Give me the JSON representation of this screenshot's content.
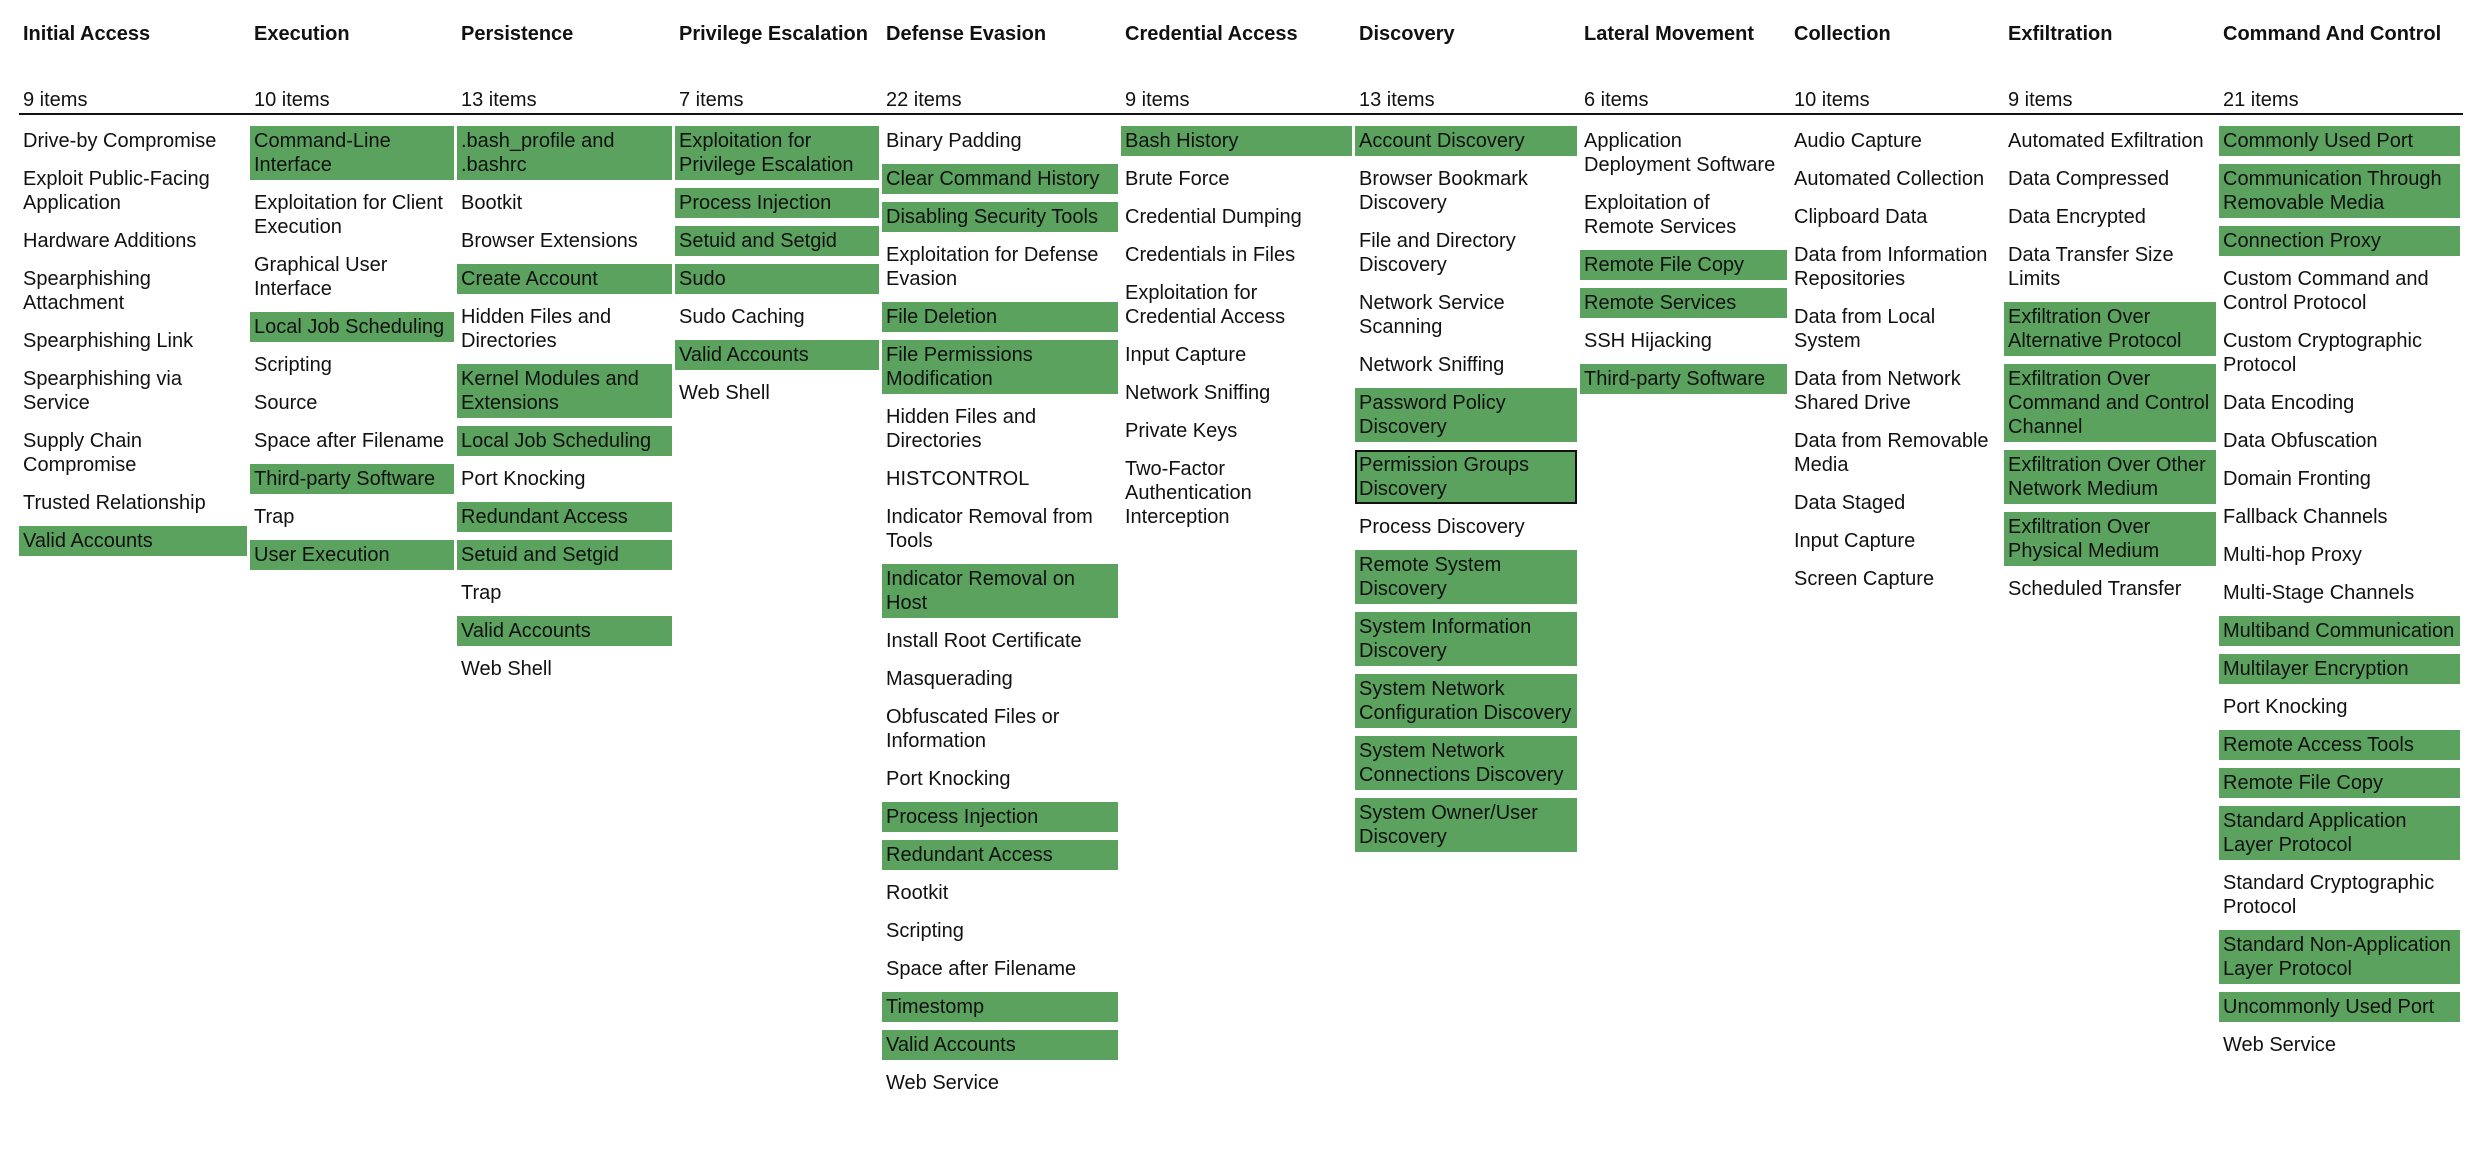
{
  "highlight_color": "#5ba25e",
  "selected_border": "#111111",
  "columns": [
    {
      "title": "Initial Access",
      "count": "9 items",
      "items": [
        {
          "name": "Drive-by Compromise",
          "highlighted": false
        },
        {
          "name": "Exploit Public-Facing Application",
          "highlighted": false
        },
        {
          "name": "Hardware Additions",
          "highlighted": false
        },
        {
          "name": "Spearphishing Attachment",
          "highlighted": false
        },
        {
          "name": "Spearphishing Link",
          "highlighted": false
        },
        {
          "name": "Spearphishing via Service",
          "highlighted": false
        },
        {
          "name": "Supply Chain Compromise",
          "highlighted": false
        },
        {
          "name": "Trusted Relationship",
          "highlighted": false
        },
        {
          "name": "Valid Accounts",
          "highlighted": true
        }
      ]
    },
    {
      "title": "Execution",
      "count": "10 items",
      "items": [
        {
          "name": "Command-Line Interface",
          "highlighted": true
        },
        {
          "name": "Exploitation for Client Execution",
          "highlighted": false
        },
        {
          "name": "Graphical User Interface",
          "highlighted": false
        },
        {
          "name": "Local Job Scheduling",
          "highlighted": true
        },
        {
          "name": "Scripting",
          "highlighted": false
        },
        {
          "name": "Source",
          "highlighted": false
        },
        {
          "name": "Space after Filename",
          "highlighted": false
        },
        {
          "name": "Third-party Software",
          "highlighted": true
        },
        {
          "name": "Trap",
          "highlighted": false
        },
        {
          "name": "User Execution",
          "highlighted": true
        }
      ]
    },
    {
      "title": "Persistence",
      "count": "13 items",
      "items": [
        {
          "name": ".bash_profile and .bashrc",
          "highlighted": true
        },
        {
          "name": "Bootkit",
          "highlighted": false
        },
        {
          "name": "Browser Extensions",
          "highlighted": false
        },
        {
          "name": "Create Account",
          "highlighted": true
        },
        {
          "name": "Hidden Files and Directories",
          "highlighted": false
        },
        {
          "name": "Kernel Modules and Extensions",
          "highlighted": true
        },
        {
          "name": "Local Job Scheduling",
          "highlighted": true
        },
        {
          "name": "Port Knocking",
          "highlighted": false
        },
        {
          "name": "Redundant Access",
          "highlighted": true
        },
        {
          "name": "Setuid and Setgid",
          "highlighted": true
        },
        {
          "name": "Trap",
          "highlighted": false
        },
        {
          "name": "Valid Accounts",
          "highlighted": true
        },
        {
          "name": "Web Shell",
          "highlighted": false
        }
      ]
    },
    {
      "title": "Privilege Escalation",
      "count": "7 items",
      "items": [
        {
          "name": "Exploitation for Privilege Escalation",
          "highlighted": true
        },
        {
          "name": "Process Injection",
          "highlighted": true
        },
        {
          "name": "Setuid and Setgid",
          "highlighted": true
        },
        {
          "name": "Sudo",
          "highlighted": true
        },
        {
          "name": "Sudo Caching",
          "highlighted": false
        },
        {
          "name": "Valid Accounts",
          "highlighted": true
        },
        {
          "name": "Web Shell",
          "highlighted": false
        }
      ]
    },
    {
      "title": "Defense Evasion",
      "count": "22 items",
      "items": [
        {
          "name": "Binary Padding",
          "highlighted": false
        },
        {
          "name": "Clear Command History",
          "highlighted": true
        },
        {
          "name": "Disabling Security Tools",
          "highlighted": true
        },
        {
          "name": "Exploitation for Defense Evasion",
          "highlighted": false
        },
        {
          "name": "File Deletion",
          "highlighted": true
        },
        {
          "name": "File Permissions Modification",
          "highlighted": true
        },
        {
          "name": "Hidden Files and Directories",
          "highlighted": false
        },
        {
          "name": "HISTCONTROL",
          "highlighted": false
        },
        {
          "name": "Indicator Removal from Tools",
          "highlighted": false
        },
        {
          "name": "Indicator Removal on Host",
          "highlighted": true
        },
        {
          "name": "Install Root Certificate",
          "highlighted": false
        },
        {
          "name": "Masquerading",
          "highlighted": false
        },
        {
          "name": "Obfuscated Files or Information",
          "highlighted": false
        },
        {
          "name": "Port Knocking",
          "highlighted": false
        },
        {
          "name": "Process Injection",
          "highlighted": true
        },
        {
          "name": "Redundant Access",
          "highlighted": true
        },
        {
          "name": "Rootkit",
          "highlighted": false
        },
        {
          "name": "Scripting",
          "highlighted": false
        },
        {
          "name": "Space after Filename",
          "highlighted": false
        },
        {
          "name": "Timestomp",
          "highlighted": true
        },
        {
          "name": "Valid Accounts",
          "highlighted": true
        },
        {
          "name": "Web Service",
          "highlighted": false
        }
      ]
    },
    {
      "title": "Credential Access",
      "count": "9 items",
      "items": [
        {
          "name": "Bash History",
          "highlighted": true
        },
        {
          "name": "Brute Force",
          "highlighted": false
        },
        {
          "name": "Credential Dumping",
          "highlighted": false
        },
        {
          "name": "Credentials in Files",
          "highlighted": false
        },
        {
          "name": "Exploitation for Credential Access",
          "highlighted": false
        },
        {
          "name": "Input Capture",
          "highlighted": false
        },
        {
          "name": "Network Sniffing",
          "highlighted": false
        },
        {
          "name": "Private Keys",
          "highlighted": false
        },
        {
          "name": "Two-Factor Authentication Interception",
          "highlighted": false
        }
      ]
    },
    {
      "title": "Discovery",
      "count": "13 items",
      "items": [
        {
          "name": "Account Discovery",
          "highlighted": true
        },
        {
          "name": "Browser Bookmark Discovery",
          "highlighted": false
        },
        {
          "name": "File and Directory Discovery",
          "highlighted": false
        },
        {
          "name": "Network Service Scanning",
          "highlighted": false
        },
        {
          "name": "Network Sniffing",
          "highlighted": false
        },
        {
          "name": "Password Policy Discovery",
          "highlighted": true
        },
        {
          "name": "Permission Groups Discovery",
          "highlighted": true,
          "selected": true
        },
        {
          "name": "Process Discovery",
          "highlighted": false
        },
        {
          "name": "Remote System Discovery",
          "highlighted": true
        },
        {
          "name": "System Information Discovery",
          "highlighted": true
        },
        {
          "name": "System Network Configuration Discovery",
          "highlighted": true
        },
        {
          "name": "System Network Connections Discovery",
          "highlighted": true
        },
        {
          "name": "System Owner/User Discovery",
          "highlighted": true
        }
      ]
    },
    {
      "title": "Lateral Movement",
      "count": "6 items",
      "items": [
        {
          "name": "Application Deployment Software",
          "highlighted": false
        },
        {
          "name": "Exploitation of Remote Services",
          "highlighted": false
        },
        {
          "name": "Remote File Copy",
          "highlighted": true
        },
        {
          "name": "Remote Services",
          "highlighted": true
        },
        {
          "name": "SSH Hijacking",
          "highlighted": false
        },
        {
          "name": "Third-party Software",
          "highlighted": true
        }
      ]
    },
    {
      "title": "Collection",
      "count": "10 items",
      "items": [
        {
          "name": "Audio Capture",
          "highlighted": false
        },
        {
          "name": "Automated Collection",
          "highlighted": false
        },
        {
          "name": "Clipboard Data",
          "highlighted": false
        },
        {
          "name": "Data from Information Repositories",
          "highlighted": false
        },
        {
          "name": "Data from Local System",
          "highlighted": false
        },
        {
          "name": "Data from Network Shared Drive",
          "highlighted": false
        },
        {
          "name": "Data from Removable Media",
          "highlighted": false
        },
        {
          "name": "Data Staged",
          "highlighted": false
        },
        {
          "name": "Input Capture",
          "highlighted": false
        },
        {
          "name": "Screen Capture",
          "highlighted": false
        }
      ]
    },
    {
      "title": "Exfiltration",
      "count": "9 items",
      "items": [
        {
          "name": "Automated Exfiltration",
          "highlighted": false
        },
        {
          "name": "Data Compressed",
          "highlighted": false
        },
        {
          "name": "Data Encrypted",
          "highlighted": false
        },
        {
          "name": "Data Transfer Size Limits",
          "highlighted": false
        },
        {
          "name": "Exfiltration Over Alternative Protocol",
          "highlighted": true
        },
        {
          "name": "Exfiltration Over Command and Control Channel",
          "highlighted": true
        },
        {
          "name": "Exfiltration Over Other Network Medium",
          "highlighted": true
        },
        {
          "name": "Exfiltration Over Physical Medium",
          "highlighted": true
        },
        {
          "name": "Scheduled Transfer",
          "highlighted": false
        }
      ]
    },
    {
      "title": "Command And Control",
      "count": "21 items",
      "items": [
        {
          "name": "Commonly Used Port",
          "highlighted": true
        },
        {
          "name": "Communication Through Removable Media",
          "highlighted": true
        },
        {
          "name": "Connection Proxy",
          "highlighted": true
        },
        {
          "name": "Custom Command and Control Protocol",
          "highlighted": false
        },
        {
          "name": "Custom Cryptographic Protocol",
          "highlighted": false
        },
        {
          "name": "Data Encoding",
          "highlighted": false
        },
        {
          "name": "Data Obfuscation",
          "highlighted": false
        },
        {
          "name": "Domain Fronting",
          "highlighted": false
        },
        {
          "name": "Fallback Channels",
          "highlighted": false
        },
        {
          "name": "Multi-hop Proxy",
          "highlighted": false
        },
        {
          "name": "Multi-Stage Channels",
          "highlighted": false
        },
        {
          "name": "Multiband Communication",
          "highlighted": true
        },
        {
          "name": "Multilayer Encryption",
          "highlighted": true
        },
        {
          "name": "Port Knocking",
          "highlighted": false
        },
        {
          "name": "Remote Access Tools",
          "highlighted": true
        },
        {
          "name": "Remote File Copy",
          "highlighted": true
        },
        {
          "name": "Standard Application Layer Protocol",
          "highlighted": true
        },
        {
          "name": "Standard Cryptographic Protocol",
          "highlighted": false
        },
        {
          "name": "Standard Non-Application Layer Protocol",
          "highlighted": true
        },
        {
          "name": "Uncommonly Used Port",
          "highlighted": true
        },
        {
          "name": "Web Service",
          "highlighted": false
        }
      ]
    }
  ]
}
